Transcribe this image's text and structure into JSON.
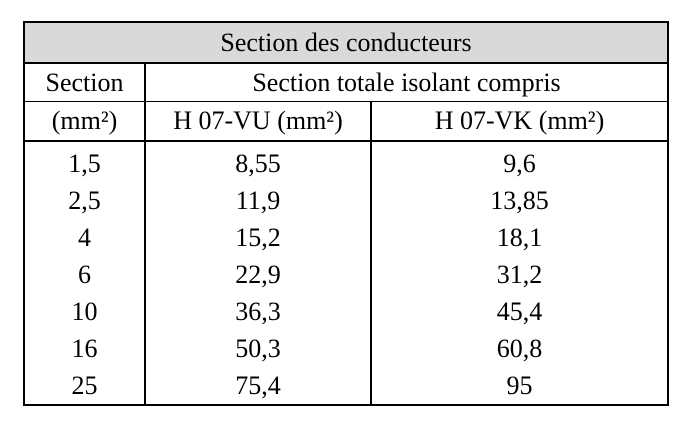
{
  "table": {
    "title": "Section des conducteurs",
    "header": {
      "section": "Section",
      "section_unit": "(mm²)",
      "group": "Section totale isolant compris",
      "col1": "H 07-VU (mm²)",
      "col2": "H 07-VK (mm²)"
    },
    "rows": [
      [
        "1,5",
        "8,55",
        "9,6"
      ],
      [
        "2,5",
        "11,9",
        "13,85"
      ],
      [
        "4",
        "15,2",
        "18,1"
      ],
      [
        "6",
        "22,9",
        "31,2"
      ],
      [
        "10",
        "36,3",
        "45,4"
      ],
      [
        "16",
        "50,3",
        "60,8"
      ],
      [
        "25",
        "75,4",
        "95"
      ]
    ]
  }
}
